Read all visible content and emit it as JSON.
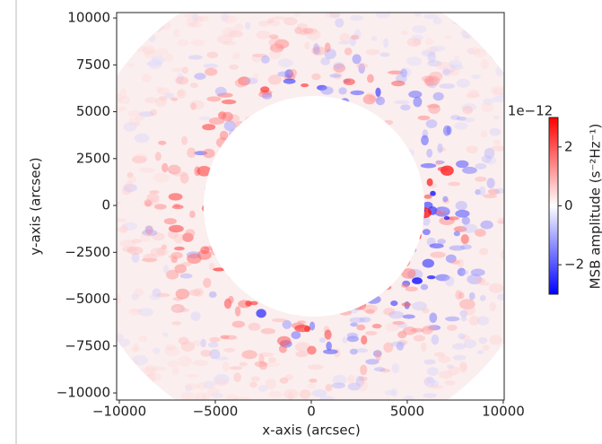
{
  "chart_data": {
    "type": "heatmap",
    "xlabel": "x-axis (arcsec)",
    "ylabel": "y-axis (arcsec)",
    "xlim": [
      -10140,
      10050
    ],
    "ylim": [
      -10380,
      10290
    ],
    "xticks": [
      {
        "value": -10000,
        "label": "−10000"
      },
      {
        "value": -5000,
        "label": "−5000"
      },
      0,
      5000,
      10000
    ],
    "yticks": [
      {
        "value": -10000,
        "label": "−10000"
      },
      {
        "value": -7500,
        "label": "−7500"
      },
      {
        "value": -5000,
        "label": "−5000"
      },
      {
        "value": -2500,
        "label": "−2500"
      },
      0,
      2500,
      5000,
      7500,
      10000
    ],
    "colorbar": {
      "label": "MSB amplitude (s⁻²Hz⁻¹)",
      "offset_label": "1e−12",
      "lim": [
        -3,
        3
      ],
      "ticks": [
        {
          "value": -2,
          "label": "−2"
        },
        0,
        2
      ],
      "colormap": [
        "#0000ff",
        "#ffffff",
        "#ff0000"
      ]
    }
  }
}
